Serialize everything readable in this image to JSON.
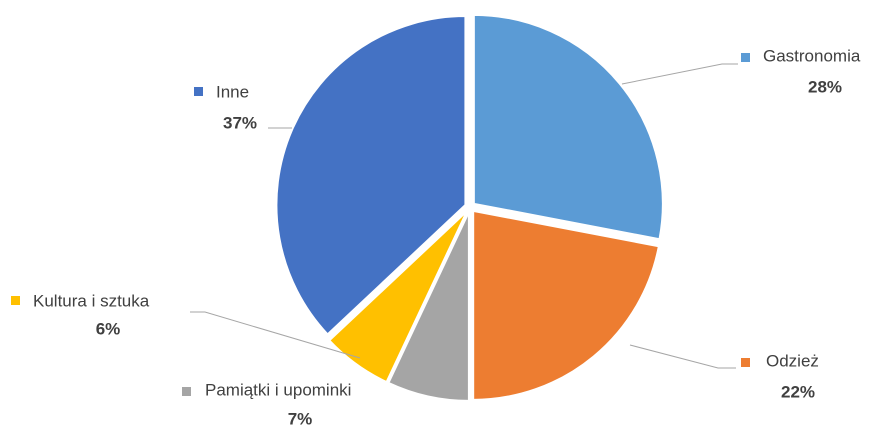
{
  "chart_data": {
    "type": "pie",
    "categories": [
      "Gastronomia",
      "Odzież",
      "Pamiątki i upominki",
      "Kultura i sztuka",
      "Inne"
    ],
    "values": [
      28,
      22,
      7,
      6,
      37
    ],
    "value_labels": [
      "28%",
      "22%",
      "7%",
      "6%",
      "37%"
    ],
    "colors": [
      "#5b9bd5",
      "#ed7d31",
      "#a5a5a5",
      "#ffc000",
      "#4472c4"
    ]
  }
}
